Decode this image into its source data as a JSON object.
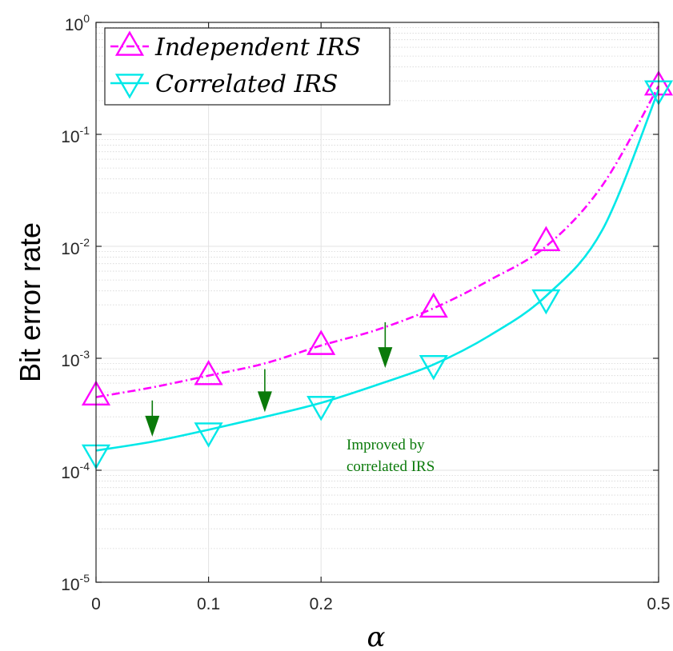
{
  "chart_data": {
    "type": "line",
    "xlabel": "α",
    "ylabel": "Bit error rate",
    "xlim": [
      0,
      0.5
    ],
    "ylim": [
      1e-05,
      1
    ],
    "yscale": "log",
    "grid": true,
    "legend_position": "top-left",
    "x_ticks": [
      "0",
      "0.1",
      "0.2",
      "0.5"
    ],
    "y_ticks": [
      {
        "base": "10",
        "exp": "-5"
      },
      {
        "base": "10",
        "exp": "-4"
      },
      {
        "base": "10",
        "exp": "-3"
      },
      {
        "base": "10",
        "exp": "-2"
      },
      {
        "base": "10",
        "exp": "-1"
      },
      {
        "base": "10",
        "exp": "0"
      }
    ],
    "series": [
      {
        "name": "Independent IRS",
        "color": "#ff00ff",
        "line_style": "dash-dot",
        "marker": "triangle-up",
        "markers": {
          "x": [
            0,
            0.1,
            0.2,
            0.3,
            0.4,
            0.5
          ],
          "y": [
            0.00046,
            0.0007,
            0.0013,
            0.0028,
            0.011,
            0.27
          ]
        },
        "curve": {
          "x": [
            0,
            0.05,
            0.1,
            0.15,
            0.2,
            0.25,
            0.3,
            0.35,
            0.4,
            0.45,
            0.5
          ],
          "y": [
            0.00045,
            0.00055,
            0.0007,
            0.0009,
            0.0013,
            0.0018,
            0.0028,
            0.005,
            0.01,
            0.035,
            0.27
          ]
        }
      },
      {
        "name": "Correlated IRS",
        "color": "#00e8e8",
        "line_style": "solid",
        "marker": "triangle-down",
        "markers": {
          "x": [
            0,
            0.1,
            0.2,
            0.3,
            0.4,
            0.5
          ],
          "y": [
            0.00014,
            0.00022,
            0.00038,
            0.00088,
            0.0034,
            0.25
          ]
        },
        "curve": {
          "x": [
            0,
            0.05,
            0.1,
            0.15,
            0.2,
            0.25,
            0.3,
            0.35,
            0.4,
            0.45,
            0.5
          ],
          "y": [
            0.00015,
            0.00018,
            0.00023,
            0.0003,
            0.0004,
            0.00058,
            0.00088,
            0.0016,
            0.0036,
            0.014,
            0.25
          ]
        }
      }
    ],
    "annotations": {
      "text_lines": [
        "Improved by",
        "correlated IRS"
      ],
      "color": "#0a7a0a",
      "arrows": [
        {
          "x": 0.05,
          "y_from": 0.00042,
          "y_to": 0.0002
        },
        {
          "x": 0.15,
          "y_from": 0.0008,
          "y_to": 0.00033
        },
        {
          "x": 0.257,
          "y_from": 0.0021,
          "y_to": 0.00082
        }
      ]
    }
  }
}
